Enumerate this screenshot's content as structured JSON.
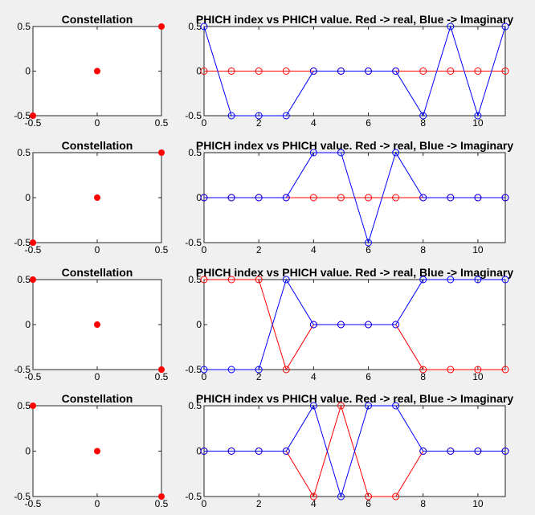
{
  "chart_data": [
    {
      "type": "scatter",
      "title": "Constellation",
      "xlim": [
        -0.5,
        0.5
      ],
      "ylim": [
        -0.5,
        0.5
      ],
      "xticks": [
        "-0.5",
        "0",
        "0.5"
      ],
      "yticks": [
        "-0.5",
        "0",
        "0.5"
      ],
      "marker_color": "#ff0000",
      "points": [
        [
          -0.5,
          -0.5
        ],
        [
          0,
          0
        ],
        [
          0.5,
          0.5
        ]
      ]
    },
    {
      "type": "line",
      "title": "PHICH index vs PHICH value. Red -> real, Blue -> Imaginary",
      "xlim": [
        0,
        11
      ],
      "ylim": [
        -0.5,
        0.5
      ],
      "xticks": [
        "0",
        "2",
        "4",
        "6",
        "8",
        "10"
      ],
      "yticks": [
        "-0.5",
        "0",
        "0.5"
      ],
      "x": [
        0,
        1,
        2,
        3,
        4,
        5,
        6,
        7,
        8,
        9,
        10,
        11
      ],
      "series": [
        {
          "color": "#ff0000",
          "values": [
            0,
            0,
            0,
            0,
            0,
            0,
            0,
            0,
            0,
            0,
            0,
            0
          ]
        },
        {
          "color": "#0000ff",
          "values": [
            0.5,
            -0.5,
            -0.5,
            -0.5,
            0,
            0,
            0,
            0,
            -0.5,
            0.5,
            -0.5,
            0.5
          ]
        }
      ]
    },
    {
      "type": "scatter",
      "title": "Constellation",
      "xlim": [
        -0.5,
        0.5
      ],
      "ylim": [
        -0.5,
        0.5
      ],
      "xticks": [
        "-0.5",
        "0",
        "0.5"
      ],
      "yticks": [
        "-0.5",
        "0",
        "0.5"
      ],
      "marker_color": "#ff0000",
      "points": [
        [
          -0.5,
          -0.5
        ],
        [
          0,
          0
        ],
        [
          0.5,
          0.5
        ]
      ]
    },
    {
      "type": "line",
      "title": "PHICH index vs PHICH value. Red -> real, Blue -> Imaginary",
      "xlim": [
        0,
        11
      ],
      "ylim": [
        -0.5,
        0.5
      ],
      "xticks": [
        "0",
        "2",
        "4",
        "6",
        "8",
        "10"
      ],
      "yticks": [
        "-0.5",
        "0",
        "0.5"
      ],
      "x": [
        0,
        1,
        2,
        3,
        4,
        5,
        6,
        7,
        8,
        9,
        10,
        11
      ],
      "series": [
        {
          "color": "#ff0000",
          "values": [
            0,
            0,
            0,
            0,
            0,
            0,
            0,
            0,
            0,
            0,
            0,
            0
          ]
        },
        {
          "color": "#0000ff",
          "values": [
            0,
            0,
            0,
            0,
            0.5,
            0.5,
            -0.5,
            0.5,
            0,
            0,
            0,
            0
          ]
        }
      ]
    },
    {
      "type": "scatter",
      "title": "Constellation",
      "xlim": [
        -0.5,
        0.5
      ],
      "ylim": [
        -0.5,
        0.5
      ],
      "xticks": [
        "-0.5",
        "0",
        "0.5"
      ],
      "yticks": [
        "-0.5",
        "0",
        "0.5"
      ],
      "marker_color": "#ff0000",
      "points": [
        [
          -0.5,
          0.5
        ],
        [
          0,
          0
        ],
        [
          0.5,
          -0.5
        ]
      ]
    },
    {
      "type": "line",
      "title": "PHICH index vs PHICH value. Red -> real, Blue -> Imaginary",
      "xlim": [
        0,
        11
      ],
      "ylim": [
        -0.5,
        0.5
      ],
      "xticks": [
        "0",
        "2",
        "4",
        "6",
        "8",
        "10"
      ],
      "yticks": [
        "-0.5",
        "0",
        "0.5"
      ],
      "x": [
        0,
        1,
        2,
        3,
        4,
        5,
        6,
        7,
        8,
        9,
        10,
        11
      ],
      "series": [
        {
          "color": "#ff0000",
          "values": [
            0.5,
            0.5,
            0.5,
            -0.5,
            0,
            0,
            0,
            0,
            -0.5,
            -0.5,
            -0.5,
            -0.5
          ]
        },
        {
          "color": "#0000ff",
          "values": [
            -0.5,
            -0.5,
            -0.5,
            0.5,
            0,
            0,
            0,
            0,
            0.5,
            0.5,
            0.5,
            0.5
          ]
        }
      ]
    },
    {
      "type": "scatter",
      "title": "Constellation",
      "xlim": [
        -0.5,
        0.5
      ],
      "ylim": [
        -0.5,
        0.5
      ],
      "xticks": [
        "-0.5",
        "0",
        "0.5"
      ],
      "yticks": [
        "-0.5",
        "0",
        "0.5"
      ],
      "marker_color": "#ff0000",
      "points": [
        [
          -0.5,
          0.5
        ],
        [
          0,
          0
        ],
        [
          0.5,
          -0.5
        ]
      ]
    },
    {
      "type": "line",
      "title": "PHICH index vs PHICH value. Red -> real, Blue -> Imaginary",
      "xlim": [
        0,
        11
      ],
      "ylim": [
        -0.5,
        0.5
      ],
      "xticks": [
        "0",
        "2",
        "4",
        "6",
        "8",
        "10"
      ],
      "yticks": [
        "-0.5",
        "0",
        "0.5"
      ],
      "x": [
        0,
        1,
        2,
        3,
        4,
        5,
        6,
        7,
        8,
        9,
        10,
        11
      ],
      "series": [
        {
          "color": "#ff0000",
          "values": [
            0,
            0,
            0,
            0,
            -0.5,
            0.5,
            -0.5,
            -0.5,
            0,
            0,
            0,
            0
          ]
        },
        {
          "color": "#0000ff",
          "values": [
            0,
            0,
            0,
            0,
            0.5,
            -0.5,
            0.5,
            0.5,
            0,
            0,
            0,
            0
          ]
        }
      ]
    }
  ]
}
